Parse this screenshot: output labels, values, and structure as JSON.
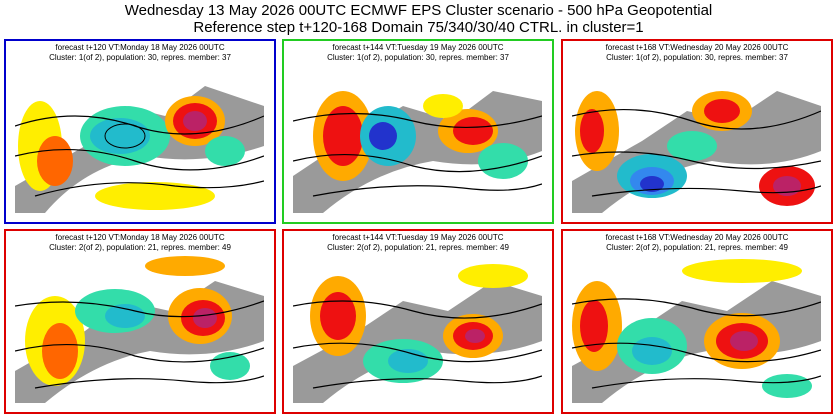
{
  "header": {
    "line1": "Wednesday 13 May 2026 00UTC ECMWF EPS Cluster scenario - 500 hPa Geopotential",
    "line2": "Reference step t+120-168 Domain 75/340/30/40 CTRL. in cluster=1"
  },
  "colors": {
    "cluster1_step120_frame": "#0000cc",
    "cluster1_step144_frame": "#22cc22",
    "default_frame": "#dd0000",
    "positive_anomaly": [
      "#ffee00",
      "#ffaa00",
      "#ff6600",
      "#ee1111",
      "#bb2266"
    ],
    "negative_anomaly": [
      "#33ddaa",
      "#22bbcc",
      "#3388ee",
      "#2233cc"
    ],
    "land": "#9a9a9a",
    "sea": "#ffffff"
  },
  "panels": [
    {
      "id": "c1-120",
      "line1": "forecast t+120 VT:Monday 18 May 2026 00UTC",
      "line2": "Cluster: 1(of 2), population: 30, repres. member: 37"
    },
    {
      "id": "c1-144",
      "line1": "forecast t+144 VT:Tuesday 19 May 2026 00UTC",
      "line2": "Cluster: 1(of 2), population: 30, repres. member: 37"
    },
    {
      "id": "c1-168",
      "line1": "forecast t+168 VT:Wednesday 20 May 2026 00UTC",
      "line2": "Cluster: 1(of 2), population: 30, repres. member: 37"
    },
    {
      "id": "c2-120",
      "line1": "forecast t+120 VT:Monday 18 May 2026 00UTC",
      "line2": "Cluster: 2(of 2), population: 21, repres. member: 49"
    },
    {
      "id": "c2-144",
      "line1": "forecast t+144 VT:Tuesday 19 May 2026 00UTC",
      "line2": "Cluster: 2(of 2), population: 21, repres. member: 49"
    },
    {
      "id": "c2-168",
      "line1": "forecast t+168 VT:Wednesday 20 May 2026 00UTC",
      "line2": "Cluster: 2(of 2), population: 21, repres. member: 49"
    }
  ]
}
